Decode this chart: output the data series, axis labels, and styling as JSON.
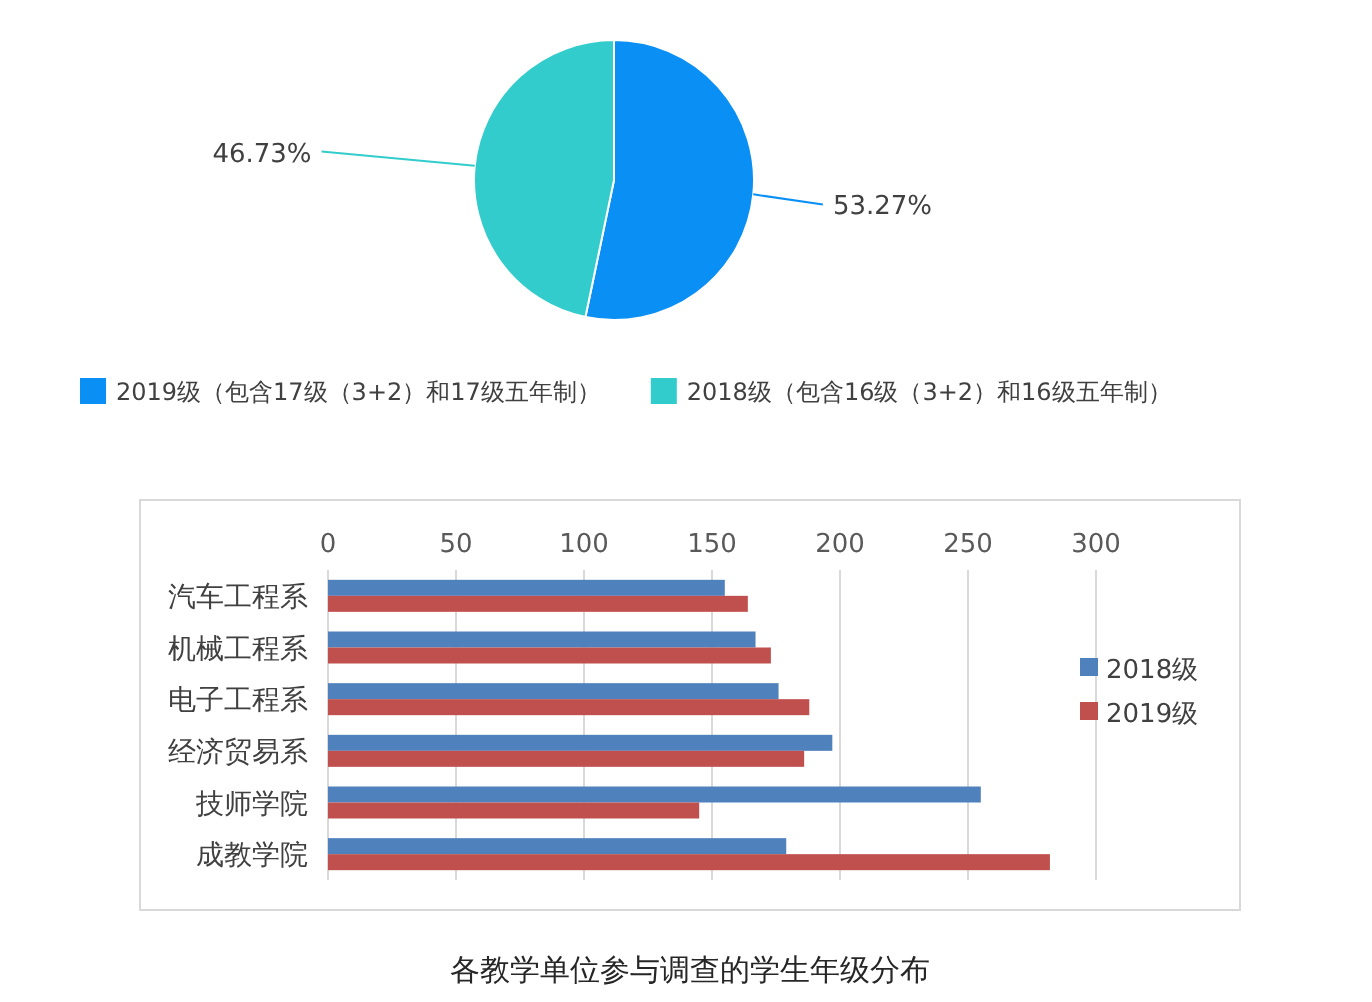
{
  "chart_data": [
    {
      "type": "pie",
      "categories": [
        "2019级（包含17级（3+2）和17级五年制）",
        "2018级（包含16级（3+2）和16级五年制）"
      ],
      "values": [
        53.27,
        46.73
      ],
      "value_labels": [
        "53.27%",
        "46.73%"
      ],
      "colors": [
        "#0a8ff5",
        "#33cccc"
      ],
      "legend": "bottom"
    },
    {
      "type": "bar",
      "orientation": "horizontal",
      "title": "各教学单位参与调查的学生年级分布",
      "categories": [
        "汽车工程系",
        "机械工程系",
        "电子工程系",
        "经济贸易系",
        "技师学院",
        "成教学院"
      ],
      "series": [
        {
          "name": "2018级",
          "color": "#4f81bd",
          "values": [
            155,
            167,
            176,
            197,
            255,
            179
          ]
        },
        {
          "name": "2019级",
          "color": "#c0504d",
          "values": [
            164,
            173,
            188,
            186,
            145,
            282
          ]
        }
      ],
      "xlim": [
        0,
        300
      ],
      "xticks": [
        0,
        50,
        100,
        150,
        200,
        250,
        300
      ],
      "grid": "x",
      "legend": "right"
    }
  ]
}
